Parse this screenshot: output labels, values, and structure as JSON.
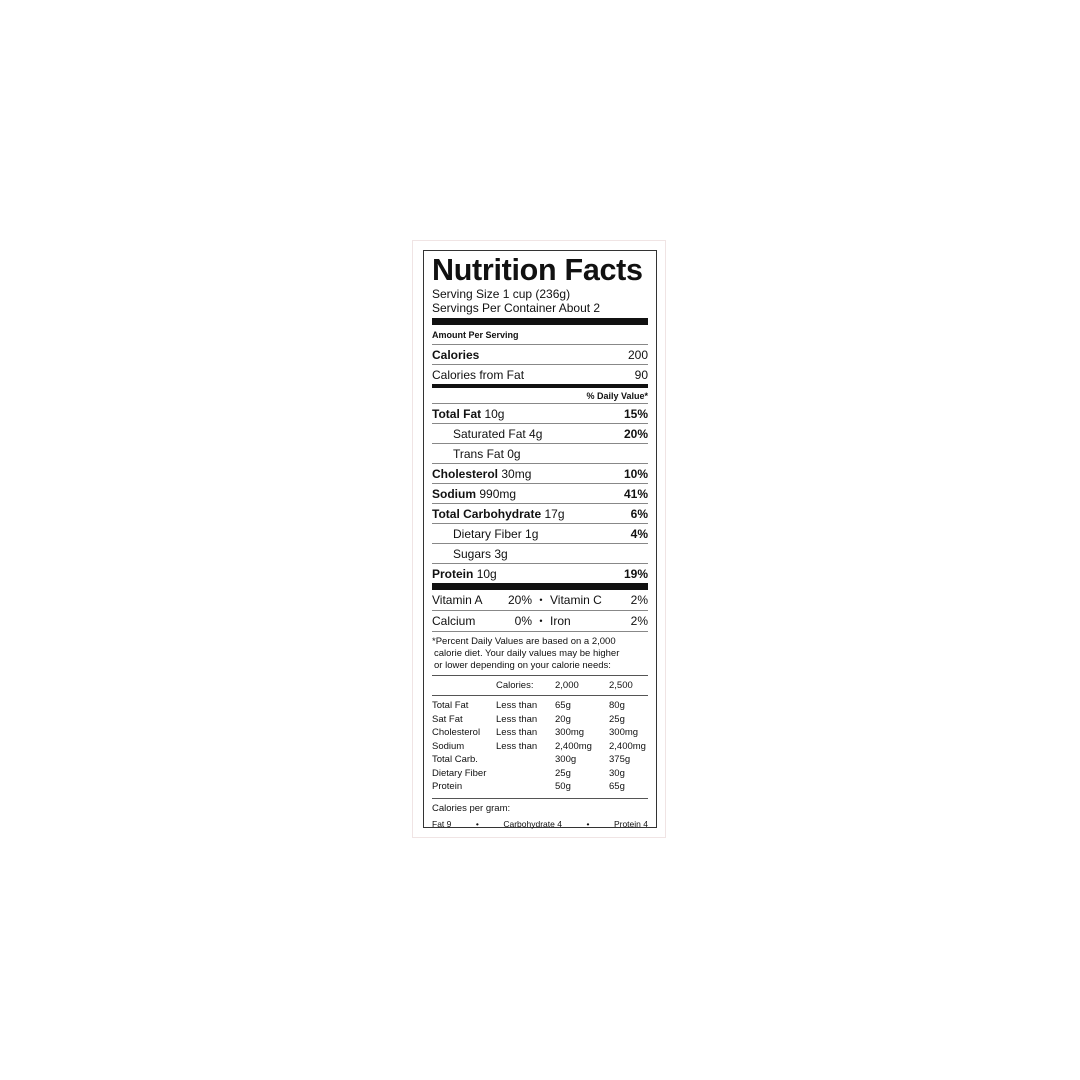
{
  "title": "Nutrition Facts",
  "serving_size": "Serving Size 1 cup (236g)",
  "servings_per_container": "Servings Per Container About 2",
  "amount_per_serving": "Amount Per Serving",
  "calories": {
    "label": "Calories",
    "value": "200"
  },
  "calories_from_fat": {
    "label": "Calories from Fat",
    "value": "90"
  },
  "daily_value_header": "% Daily Value*",
  "nutrients": [
    {
      "label": "Total Fat",
      "amount": "10g",
      "dv": "15%"
    },
    {
      "label": "Saturated Fat 4g",
      "amount": "",
      "dv": "20%"
    },
    {
      "label": "Trans Fat 0g",
      "amount": "",
      "dv": ""
    },
    {
      "label": "Cholesterol",
      "amount": "30mg",
      "dv": "10%"
    },
    {
      "label": "Sodium",
      "amount": "990mg",
      "dv": "41%"
    },
    {
      "label": "Total Carbohydrate",
      "amount": "17g",
      "dv": "6%"
    },
    {
      "label": "Dietary Fiber 1g",
      "amount": "",
      "dv": "4%"
    },
    {
      "label": "Sugars 3g",
      "amount": "",
      "dv": ""
    },
    {
      "label": "Protein",
      "amount": "10g",
      "dv": "19%"
    }
  ],
  "vitamins": [
    {
      "a": "Vitamin A",
      "av": "20%",
      "b": "Vitamin C",
      "bv": "2%"
    },
    {
      "a": "Calcium",
      "av": "0%",
      "b": "Iron",
      "bv": "2%"
    }
  ],
  "bullet": "•",
  "footnote": [
    "*Percent Daily Values are based on a 2,000",
    "calorie diet. Your daily values may be higher",
    "or lower depending on your calorie needs:"
  ],
  "table_header": [
    "",
    "Calories:",
    "2,000",
    "2,500"
  ],
  "table_rows": [
    [
      "Total Fat",
      "Less than",
      "65g",
      "80g"
    ],
    [
      "Sat Fat",
      "Less than",
      "20g",
      "25g"
    ],
    [
      "Cholesterol",
      "Less than",
      "300mg",
      "300mg"
    ],
    [
      "Sodium",
      "Less than",
      "2,400mg",
      "2,400mg"
    ],
    [
      "Total Carb.",
      "",
      "300g",
      "375g"
    ],
    [
      "Dietary Fiber",
      "",
      "25g",
      "30g"
    ],
    [
      "Protein",
      "",
      "50g",
      "65g"
    ]
  ],
  "calories_per_gram": "Calories per gram:",
  "cpg_items": [
    "Fat 9",
    "Carbohydrate 4",
    "Protein 4"
  ]
}
